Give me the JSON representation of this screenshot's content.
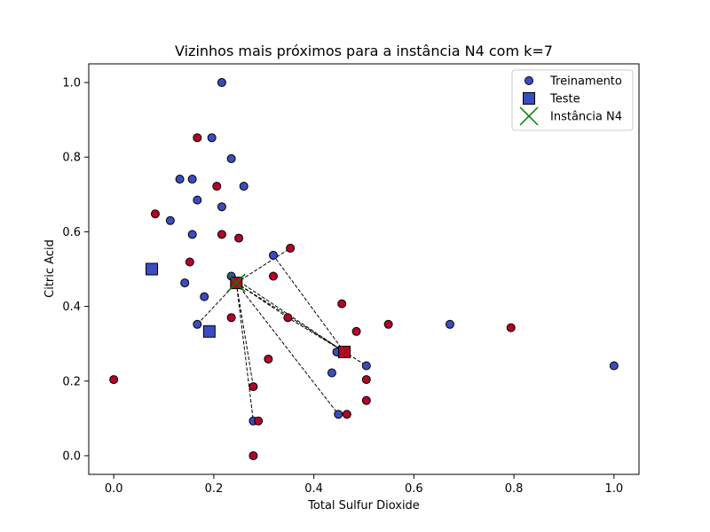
{
  "chart_data": {
    "type": "scatter",
    "title": "Vizinhos mais próximos para a instância N4 com k=7",
    "xlabel": "Total Sulfur Dioxide",
    "ylabel": "Citric Acid",
    "xlim": [
      -0.05,
      1.05
    ],
    "ylim": [
      -0.05,
      1.05
    ],
    "xticks": [
      "0.0",
      "0.2",
      "0.4",
      "0.6",
      "0.8",
      "1.0"
    ],
    "yticks": [
      "0.0",
      "0.2",
      "0.4",
      "0.6",
      "0.8",
      "1.0"
    ],
    "grid": false,
    "legend_position": "top-right",
    "colors": {
      "blue": "#3b4cc0",
      "red": "#b40426",
      "instance": "#008000"
    },
    "legend": [
      {
        "label": "Treinamento",
        "marker": "circle"
      },
      {
        "label": "Teste",
        "marker": "square"
      },
      {
        "label": "Instância N4",
        "marker": "x"
      }
    ],
    "series": [
      {
        "name": "Treinamento",
        "marker": "circle",
        "points": [
          {
            "x": 0.216,
            "y": 1.0,
            "c": "blue"
          },
          {
            "x": 0.196,
            "y": 0.852,
            "c": "blue"
          },
          {
            "x": 0.167,
            "y": 0.852,
            "c": "red"
          },
          {
            "x": 0.235,
            "y": 0.796,
            "c": "blue"
          },
          {
            "x": 0.132,
            "y": 0.741,
            "c": "blue"
          },
          {
            "x": 0.157,
            "y": 0.741,
            "c": "blue"
          },
          {
            "x": 0.206,
            "y": 0.722,
            "c": "red"
          },
          {
            "x": 0.26,
            "y": 0.722,
            "c": "blue"
          },
          {
            "x": 0.167,
            "y": 0.685,
            "c": "blue"
          },
          {
            "x": 0.216,
            "y": 0.667,
            "c": "blue"
          },
          {
            "x": 0.083,
            "y": 0.648,
            "c": "red"
          },
          {
            "x": 0.113,
            "y": 0.63,
            "c": "blue"
          },
          {
            "x": 0.157,
            "y": 0.593,
            "c": "blue"
          },
          {
            "x": 0.216,
            "y": 0.593,
            "c": "red"
          },
          {
            "x": 0.25,
            "y": 0.583,
            "c": "red"
          },
          {
            "x": 0.353,
            "y": 0.556,
            "c": "red"
          },
          {
            "x": 0.319,
            "y": 0.537,
            "c": "blue"
          },
          {
            "x": 0.152,
            "y": 0.519,
            "c": "red"
          },
          {
            "x": 0.235,
            "y": 0.481,
            "c": "blue"
          },
          {
            "x": 0.319,
            "y": 0.481,
            "c": "red"
          },
          {
            "x": 0.142,
            "y": 0.463,
            "c": "blue"
          },
          {
            "x": 0.181,
            "y": 0.426,
            "c": "blue"
          },
          {
            "x": 0.456,
            "y": 0.407,
            "c": "red"
          },
          {
            "x": 0.235,
            "y": 0.37,
            "c": "red"
          },
          {
            "x": 0.348,
            "y": 0.37,
            "c": "red"
          },
          {
            "x": 0.167,
            "y": 0.352,
            "c": "blue"
          },
          {
            "x": 0.549,
            "y": 0.352,
            "c": "red"
          },
          {
            "x": 0.672,
            "y": 0.352,
            "c": "blue"
          },
          {
            "x": 0.485,
            "y": 0.333,
            "c": "red"
          },
          {
            "x": 0.794,
            "y": 0.343,
            "c": "red"
          },
          {
            "x": 0.446,
            "y": 0.278,
            "c": "blue"
          },
          {
            "x": 0.309,
            "y": 0.259,
            "c": "red"
          },
          {
            "x": 0.505,
            "y": 0.241,
            "c": "blue"
          },
          {
            "x": 1.0,
            "y": 0.241,
            "c": "blue"
          },
          {
            "x": 0.436,
            "y": 0.222,
            "c": "blue"
          },
          {
            "x": 0.0,
            "y": 0.204,
            "c": "red"
          },
          {
            "x": 0.505,
            "y": 0.204,
            "c": "red"
          },
          {
            "x": 0.279,
            "y": 0.185,
            "c": "red"
          },
          {
            "x": 0.505,
            "y": 0.148,
            "c": "red"
          },
          {
            "x": 0.449,
            "y": 0.111,
            "c": "blue"
          },
          {
            "x": 0.466,
            "y": 0.111,
            "c": "red"
          },
          {
            "x": 0.279,
            "y": 0.093,
            "c": "blue"
          },
          {
            "x": 0.289,
            "y": 0.093,
            "c": "red"
          },
          {
            "x": 0.279,
            "y": 0.0,
            "c": "red"
          }
        ]
      },
      {
        "name": "Teste",
        "marker": "square",
        "points": [
          {
            "x": 0.076,
            "y": 0.5,
            "c": "blue"
          },
          {
            "x": 0.191,
            "y": 0.333,
            "c": "blue"
          },
          {
            "x": 0.245,
            "y": 0.463,
            "c": "red"
          },
          {
            "x": 0.461,
            "y": 0.278,
            "c": "red"
          }
        ]
      },
      {
        "name": "Instância N4",
        "marker": "x",
        "points": [
          {
            "x": 0.245,
            "y": 0.463,
            "c": "instance"
          }
        ]
      }
    ],
    "neighbor_lines": [
      {
        "from": [
          0.245,
          0.463
        ],
        "to": [
          0.353,
          0.556
        ]
      },
      {
        "from": [
          0.245,
          0.463
        ],
        "to": [
          0.167,
          0.352
        ]
      },
      {
        "from": [
          0.245,
          0.463
        ],
        "to": [
          0.279,
          0.185
        ]
      },
      {
        "from": [
          0.245,
          0.463
        ],
        "to": [
          0.279,
          0.093
        ]
      },
      {
        "from": [
          0.245,
          0.463
        ],
        "to": [
          0.449,
          0.111
        ]
      },
      {
        "from": [
          0.245,
          0.463
        ],
        "to": [
          0.505,
          0.241
        ]
      },
      {
        "from": [
          0.245,
          0.463
        ],
        "to": [
          0.348,
          0.37
        ]
      },
      {
        "from": [
          0.461,
          0.278
        ],
        "to": [
          0.348,
          0.37
        ]
      },
      {
        "from": [
          0.461,
          0.278
        ],
        "to": [
          0.235,
          0.481
        ]
      },
      {
        "from": [
          0.461,
          0.278
        ],
        "to": [
          0.319,
          0.537
        ]
      }
    ]
  }
}
